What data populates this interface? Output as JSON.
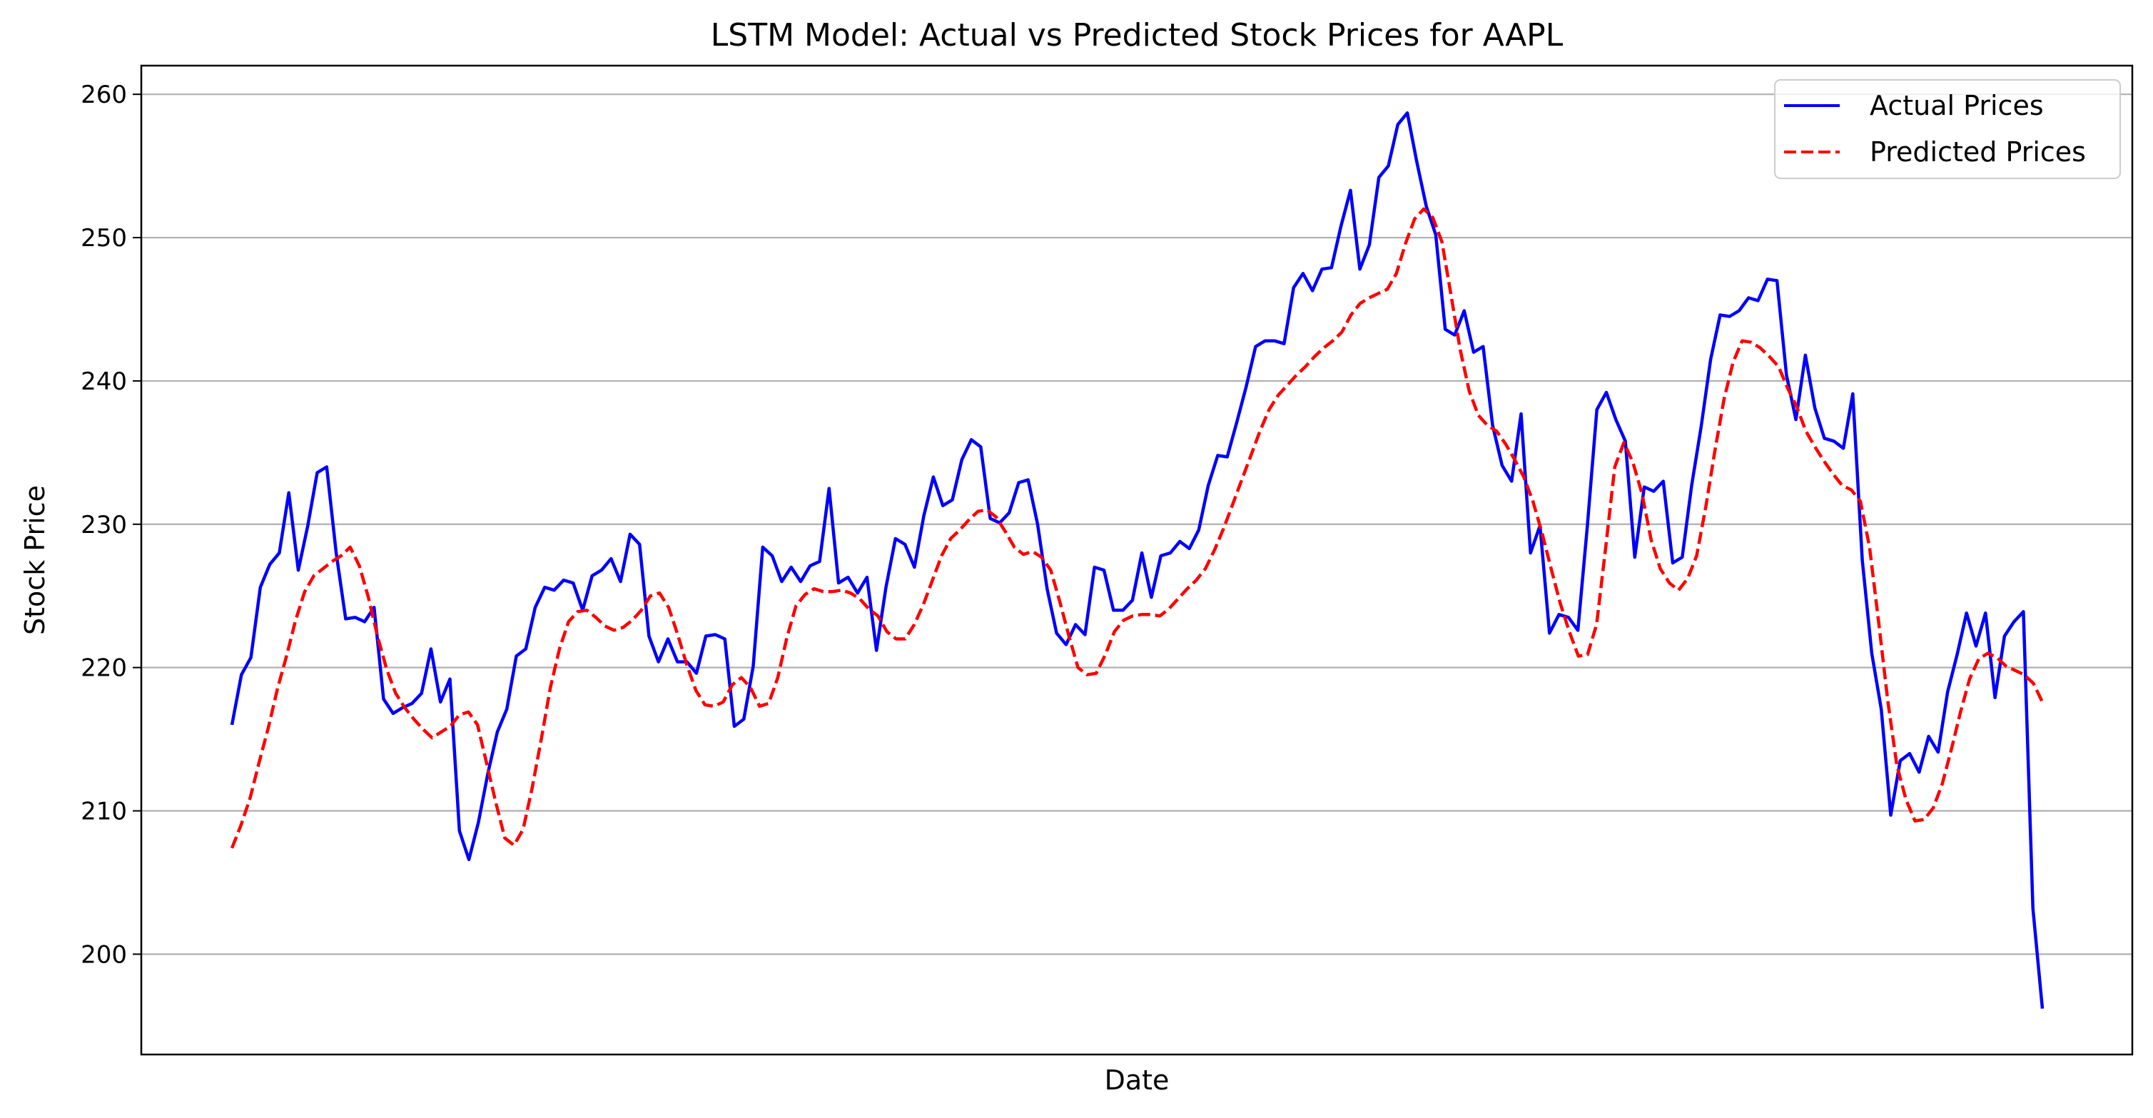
{
  "chart_data": {
    "type": "line",
    "title": "LSTM Model: Actual vs Predicted Stock Prices for AAPL",
    "xlabel": "Date",
    "ylabel": "Stock Price",
    "ylim": [
      193,
      262
    ],
    "yticks": [
      200,
      210,
      220,
      230,
      240,
      250,
      260
    ],
    "grid": "horizontal",
    "legend_position": "top-right",
    "series": [
      {
        "name": "Actual Prices",
        "color": "#0000ff",
        "style": "solid",
        "values": [
          216.0,
          219.5,
          220.7,
          225.6,
          227.2,
          228.0,
          232.2,
          226.8,
          229.9,
          233.6,
          234.0,
          228.0,
          223.4,
          223.5,
          223.2,
          224.2,
          217.8,
          216.8,
          217.2,
          217.5,
          218.2,
          221.3,
          217.6,
          219.2,
          208.6,
          206.6,
          209.2,
          212.6,
          215.5,
          217.1,
          220.8,
          221.3,
          224.2,
          225.6,
          225.4,
          226.1,
          225.9,
          224.0,
          226.4,
          226.8,
          227.6,
          226.0,
          229.3,
          228.6,
          222.2,
          220.4,
          222.0,
          220.4,
          220.4,
          219.6,
          222.2,
          222.3,
          222.0,
          215.9,
          216.4,
          220.1,
          228.4,
          227.8,
          226.0,
          227.0,
          226.0,
          227.1,
          227.4,
          232.5,
          225.9,
          226.3,
          225.2,
          226.3,
          221.2,
          225.6,
          229.0,
          228.6,
          227.0,
          230.6,
          233.3,
          231.3,
          231.7,
          234.5,
          235.9,
          235.4,
          230.4,
          230.1,
          230.8,
          232.9,
          233.1,
          230.0,
          225.5,
          222.4,
          221.6,
          223.0,
          222.3,
          227.0,
          226.8,
          224.0,
          224.0,
          224.7,
          228.0,
          224.9,
          227.8,
          228.0,
          228.8,
          228.3,
          229.6,
          232.7,
          234.8,
          234.7,
          237.1,
          239.6,
          242.4,
          242.8,
          242.8,
          242.6,
          246.5,
          247.5,
          246.3,
          247.8,
          247.9,
          250.8,
          253.3,
          247.8,
          249.5,
          254.2,
          255.0,
          257.9,
          258.7,
          255.3,
          252.2,
          250.2,
          243.6,
          243.2,
          244.9,
          242.0,
          242.4,
          236.9,
          234.1,
          233.0,
          237.7,
          228.0,
          229.9,
          222.4,
          223.7,
          223.5,
          222.6,
          229.9,
          238.0,
          239.2,
          237.3,
          235.8,
          227.7,
          232.6,
          232.3,
          233.0,
          227.3,
          227.7,
          232.7,
          236.8,
          241.5,
          244.6,
          244.5,
          244.9,
          245.8,
          245.6,
          247.1,
          247.0,
          240.4,
          237.3,
          241.8,
          238.1,
          236.0,
          235.8,
          235.3,
          239.1,
          227.5,
          221.0,
          217.1,
          209.7,
          213.5,
          214.0,
          212.7,
          215.2,
          214.1,
          218.3,
          220.9,
          223.8,
          221.5,
          223.8,
          217.9,
          222.2,
          223.2,
          223.9,
          203.2,
          196.2
        ]
      },
      {
        "name": "Predicted Prices",
        "color": "#ff0000",
        "style": "dashed",
        "values": [
          207.4,
          209.0,
          210.9,
          213.4,
          215.8,
          218.5,
          220.8,
          223.3,
          225.3,
          226.4,
          226.9,
          227.4,
          227.8,
          228.4,
          227.1,
          224.9,
          222.2,
          219.9,
          218.2,
          217.2,
          216.4,
          215.7,
          215.1,
          215.5,
          215.9,
          216.7,
          216.9,
          216.0,
          213.3,
          210.6,
          208.1,
          207.6,
          208.7,
          211.6,
          215.0,
          218.6,
          221.3,
          223.2,
          223.9,
          224.0,
          223.5,
          222.9,
          222.6,
          222.8,
          223.3,
          224.0,
          225.0,
          225.2,
          224.2,
          222.3,
          220.2,
          218.4,
          217.4,
          217.3,
          217.6,
          218.8,
          219.3,
          218.6,
          217.3,
          217.5,
          219.3,
          222.1,
          224.3,
          225.1,
          225.5,
          225.3,
          225.3,
          225.4,
          225.2,
          224.8,
          224.1,
          223.6,
          222.5,
          222.0,
          222.0,
          223.0,
          224.4,
          226.1,
          227.8,
          229.0,
          229.6,
          230.3,
          230.9,
          231.0,
          230.5,
          229.5,
          228.4,
          227.9,
          228.1,
          227.7,
          226.8,
          224.6,
          222.2,
          220.0,
          219.5,
          219.6,
          220.9,
          222.5,
          223.3,
          223.6,
          223.7,
          223.7,
          223.6,
          224.1,
          224.8,
          225.5,
          226.1,
          226.9,
          228.2,
          229.7,
          231.4,
          233.1,
          234.8,
          236.5,
          238.0,
          239.0,
          239.7,
          240.4,
          241.0,
          241.7,
          242.3,
          242.8,
          243.4,
          244.6,
          245.4,
          245.8,
          246.1,
          246.4,
          247.5,
          249.6,
          251.3,
          252.0,
          251.4,
          249.7,
          246.0,
          242.2,
          239.3,
          237.6,
          236.9,
          236.5,
          235.6,
          234.5,
          233.3,
          231.6,
          229.4,
          226.9,
          224.5,
          222.5,
          220.8,
          220.9,
          223.0,
          228.4,
          234.0,
          235.7,
          234.3,
          232.1,
          228.9,
          226.9,
          225.9,
          225.4,
          226.2,
          227.8,
          231.2,
          235.1,
          238.7,
          241.3,
          242.8,
          242.7,
          242.3,
          241.7,
          241.0,
          239.5,
          238.2,
          236.5,
          235.4,
          234.4,
          233.5,
          232.7,
          232.4,
          231.6,
          228.4,
          223.2,
          217.7,
          213.2,
          210.8,
          209.3,
          209.4,
          210.2,
          211.9,
          214.3,
          216.9,
          219.2,
          220.6,
          221.0,
          220.7,
          220.1,
          219.8,
          219.5,
          218.9,
          217.6
        ]
      }
    ]
  }
}
